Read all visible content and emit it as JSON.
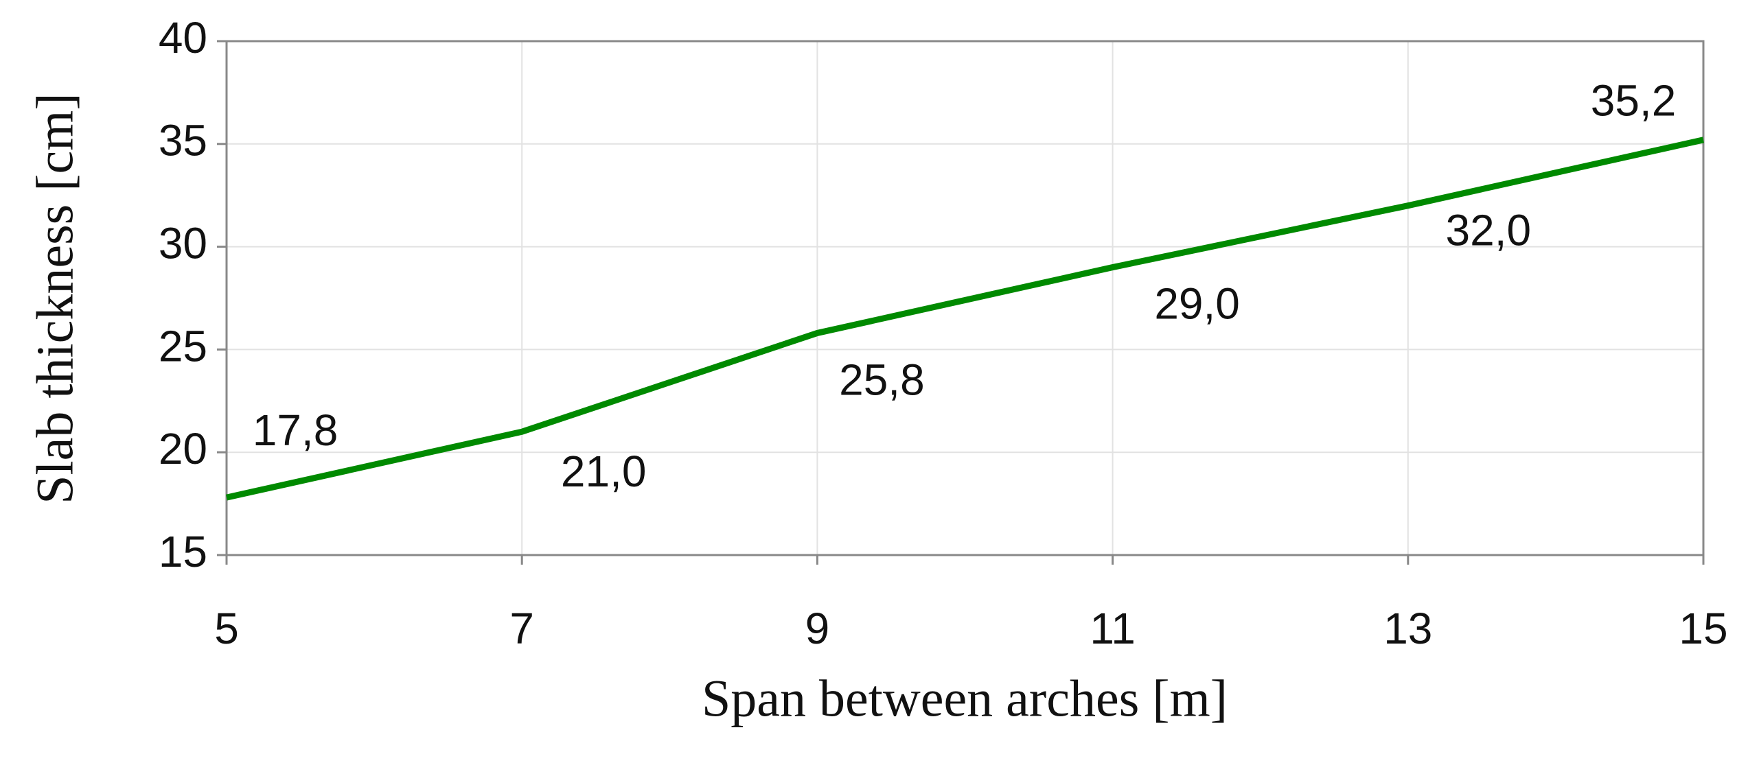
{
  "chart_data": {
    "type": "line",
    "x_label": "Span between arches [m]",
    "y_label": "Slab thickness [cm]",
    "x": [
      5,
      7,
      9,
      11,
      13,
      15
    ],
    "series": [
      {
        "name": "Slab thickness",
        "color": "#008a00",
        "values": [
          17.8,
          21.0,
          25.8,
          29.0,
          32.0,
          35.2
        ],
        "value_labels": [
          "17,8",
          "21,0",
          "25,8",
          "29,0",
          "32,0",
          "35,2"
        ]
      }
    ],
    "xlim": [
      5,
      15
    ],
    "xticks": [
      5,
      7,
      9,
      11,
      13,
      15
    ],
    "ylim": [
      15,
      40
    ],
    "yticks": [
      15,
      20,
      25,
      30,
      35,
      40
    ],
    "grid": true,
    "legend": false
  }
}
